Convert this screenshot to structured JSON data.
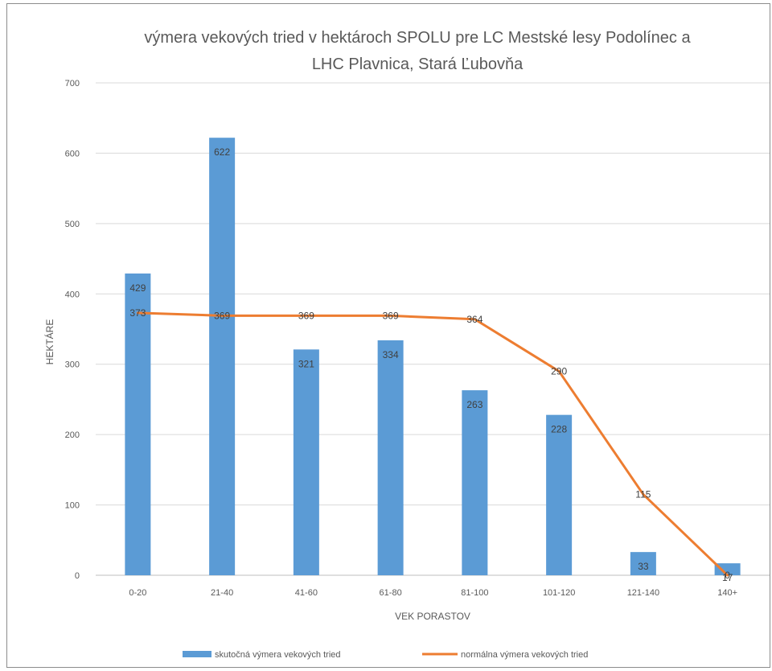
{
  "chart_data": {
    "type": "bar",
    "title_lines": [
      "výmera vekových tried v hektároch SPOLU pre LC Mestské lesy Podolínec a",
      "LHC Plavnica, Stará Ľubovňa"
    ],
    "xlabel": "VEK PORASTOV",
    "ylabel": "HEKTÁRE",
    "ylim": [
      0,
      700
    ],
    "yticks": [
      0,
      100,
      200,
      300,
      400,
      500,
      600,
      700
    ],
    "categories": [
      "0-20",
      "21-40",
      "41-60",
      "61-80",
      "81-100",
      "101-120",
      "121-140",
      "140+"
    ],
    "series": [
      {
        "name": "skutočná výmera vekových tried",
        "type": "bar",
        "color": "#5b9bd5",
        "values": [
          429,
          622,
          321,
          334,
          263,
          228,
          33,
          17
        ]
      },
      {
        "name": "normálna výmera vekových tried",
        "type": "line",
        "color": "#ed7d31",
        "values": [
          373,
          369,
          369,
          369,
          364,
          290,
          115,
          0
        ]
      }
    ],
    "grid": true,
    "legend_position": "bottom"
  }
}
